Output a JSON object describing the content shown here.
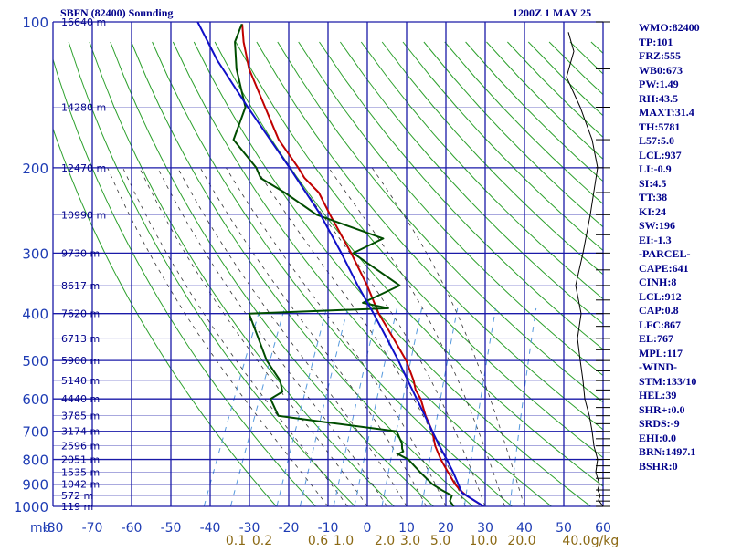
{
  "header": {
    "station": "SBFN (82400) Sounding",
    "time": "1200Z  1 MAY 25"
  },
  "indices": [
    "WMO:82400",
    "TP:101",
    "FRZ:555",
    "WB0:673",
    "PW:1.49",
    "RH:43.5",
    "MAXT:31.4",
    "TH:5781",
    "L57:5.0",
    "LCL:937",
    "LI:-0.9",
    "SI:4.5",
    "TT:38",
    "KI:24",
    "SW:196",
    "EI:-1.3",
    "-PARCEL-",
    "CAPE:641",
    "CINH:8",
    "LCL:912",
    "CAP:0.8",
    "LFC:867",
    "EL:767",
    "MPL:117",
    "-WIND-",
    "STM:133/10",
    "HEL:39",
    "SHR+:0.0",
    "SRDS:-9",
    "EHI:0.0",
    "BRN:1497.1",
    "BSHR:0"
  ],
  "colors": {
    "temperature": "#c00000",
    "dewpoint": "#004d00",
    "parcel": "#1010c8",
    "grid": "#1a1aa8",
    "dry_adiabat": "#2ca02c",
    "moist_adiabat": "#333333",
    "mixing_ratio": "#5599dd"
  },
  "chart_data": {
    "type": "line",
    "title": "SBFN (82400) Sounding",
    "subtitle": "1200Z  1 MAY 25",
    "axes": {
      "x_unit_label": "mb",
      "x_ticks": [
        "-80",
        "-70",
        "-60",
        "-50",
        "-40",
        "-30",
        "-20",
        "-10",
        "0",
        "10",
        "20",
        "30",
        "40",
        "50",
        "60"
      ],
      "x_range": [
        -80,
        60
      ],
      "y_ticks": [
        "100",
        "200",
        "300",
        "400",
        "500",
        "600",
        "700",
        "800",
        "900",
        "1000"
      ],
      "y_range": [
        100,
        1000
      ],
      "y_scale": "log",
      "y_reversed": true,
      "skew": true
    },
    "height_labels": [
      {
        "p": 100,
        "label": "16640 m"
      },
      {
        "p": 150,
        "label": "14280 m"
      },
      {
        "p": 200,
        "label": "12470 m"
      },
      {
        "p": 250,
        "label": "10990 m"
      },
      {
        "p": 300,
        "label": "9730 m"
      },
      {
        "p": 350,
        "label": "8617 m"
      },
      {
        "p": 400,
        "label": "7620 m"
      },
      {
        "p": 450,
        "label": "6713 m"
      },
      {
        "p": 500,
        "label": "5900 m"
      },
      {
        "p": 550,
        "label": "5140 m"
      },
      {
        "p": 600,
        "label": "4440 m"
      },
      {
        "p": 650,
        "label": "3785 m"
      },
      {
        "p": 700,
        "label": "3174 m"
      },
      {
        "p": 750,
        "label": "2596 m"
      },
      {
        "p": 800,
        "label": "2051 m"
      },
      {
        "p": 850,
        "label": "1535 m"
      },
      {
        "p": 900,
        "label": "1042 m"
      },
      {
        "p": 950,
        "label": "572 m"
      },
      {
        "p": 1000,
        "label": "119 m"
      }
    ],
    "mixing_ratio_labels": [
      "0.1",
      "0.2",
      "0.6",
      "1.0",
      "2.0",
      "3.0",
      "5.0",
      "10.0",
      "20.0",
      "40.0",
      "g/kg"
    ],
    "series": [
      {
        "key": "temperature",
        "points": [
          [
            1000,
            29.6
          ],
          [
            975,
            26.8
          ],
          [
            950,
            24.0
          ],
          [
            925,
            21.7
          ],
          [
            900,
            19.8
          ],
          [
            850,
            16.6
          ],
          [
            800,
            13.3
          ],
          [
            750,
            10.3
          ],
          [
            700,
            7.9
          ],
          [
            650,
            4.4
          ],
          [
            600,
            1.2
          ],
          [
            575,
            -1.1
          ],
          [
            550,
            -2.7
          ],
          [
            500,
            -6.9
          ],
          [
            450,
            -12.7
          ],
          [
            400,
            -19.3
          ],
          [
            350,
            -25.5
          ],
          [
            300,
            -33.3
          ],
          [
            250,
            -43.1
          ],
          [
            225,
            -48.5
          ],
          [
            210,
            -53.8
          ],
          [
            200,
            -56.6
          ],
          [
            175,
            -64.8
          ],
          [
            150,
            -72.0
          ],
          [
            125,
            -80.5
          ],
          [
            110,
            -85.0
          ],
          [
            101,
            -87.4
          ]
        ]
      },
      {
        "key": "dewpoint",
        "points": [
          [
            1000,
            22.0
          ],
          [
            975,
            20.4
          ],
          [
            950,
            20.3
          ],
          [
            925,
            17.0
          ],
          [
            900,
            14.0
          ],
          [
            850,
            9.5
          ],
          [
            800,
            5.0
          ],
          [
            780,
            1.8
          ],
          [
            770,
            2.8
          ],
          [
            760,
            2.2
          ],
          [
            740,
            1.5
          ],
          [
            700,
            -1.2
          ],
          [
            670,
            -20.5
          ],
          [
            650,
            -33.1
          ],
          [
            600,
            -37.0
          ],
          [
            580,
            -34.8
          ],
          [
            550,
            -36.7
          ],
          [
            500,
            -42.4
          ],
          [
            400,
            -52.3
          ],
          [
            390,
            -17.5
          ],
          [
            380,
            -24.6
          ],
          [
            350,
            -17.2
          ],
          [
            300,
            -32.8
          ],
          [
            280,
            -26.8
          ],
          [
            250,
            -46.5
          ],
          [
            225,
            -57.2
          ],
          [
            210,
            -65.0
          ],
          [
            200,
            -67.3
          ],
          [
            175,
            -76.3
          ],
          [
            150,
            -77.0
          ],
          [
            125,
            -83.7
          ],
          [
            110,
            -87.2
          ],
          [
            101,
            -87.5
          ]
        ]
      },
      {
        "key": "parcel",
        "points": [
          [
            1000,
            29.6
          ],
          [
            937,
            22.5
          ],
          [
            900,
            20.6
          ],
          [
            850,
            17.9
          ],
          [
            800,
            14.8
          ],
          [
            750,
            11.4
          ],
          [
            700,
            7.9
          ],
          [
            650,
            4.2
          ],
          [
            600,
            0.2
          ],
          [
            550,
            -4.2
          ],
          [
            500,
            -8.9
          ],
          [
            450,
            -14.4
          ],
          [
            400,
            -20.6
          ],
          [
            350,
            -27.9
          ],
          [
            300,
            -35.8
          ],
          [
            250,
            -45.5
          ],
          [
            200,
            -58.8
          ],
          [
            150,
            -76.4
          ],
          [
            120,
            -89.6
          ],
          [
            100,
            -99.0
          ]
        ]
      }
    ]
  }
}
